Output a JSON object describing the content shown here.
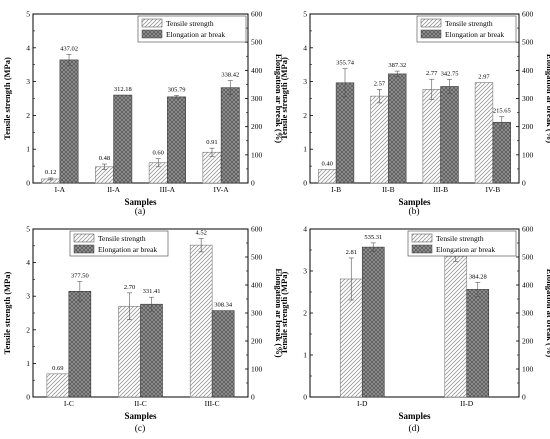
{
  "chart_data": [
    {
      "type": "bar",
      "panel": "(a)",
      "categories": [
        "I-A",
        "II-A",
        "III-A",
        "IV-A"
      ],
      "xlabel": "Samples",
      "ylabel_left": "Tensile strength (MPa)",
      "ylabel_right": "Elongation ar break (%)",
      "ylim_left": [
        0,
        5
      ],
      "ylim_right": [
        0,
        600
      ],
      "yticks_left": [
        "0",
        "1",
        "2",
        "3",
        "4",
        "5"
      ],
      "yticks_right": [
        "0",
        "100",
        "200",
        "300",
        "400",
        "500",
        "600"
      ],
      "legend": "top-right",
      "series": [
        {
          "name": "Tensile strength",
          "axis": "left",
          "values": [
            0.12,
            0.48,
            0.6,
            0.91
          ],
          "labels": [
            "0.12",
            "0.48",
            "0.60",
            "0.91"
          ],
          "errors": [
            0.03,
            0.08,
            0.12,
            0.12
          ]
        },
        {
          "name": "Elongation ar break",
          "axis": "right",
          "values": [
            437.02,
            312.18,
            305.79,
            338.42
          ],
          "labels": [
            "437.02",
            "312.18",
            "305.79",
            "338.42"
          ],
          "errors": [
            20,
            0,
            5,
            25
          ]
        }
      ]
    },
    {
      "type": "bar",
      "panel": "(b)",
      "categories": [
        "I-B",
        "II-B",
        "III-B",
        "IV-B"
      ],
      "xlabel": "Samples",
      "ylabel_left": "Tensile strength (MPa)",
      "ylabel_right": "Elongation ar break (%)",
      "ylim_left": [
        0,
        5
      ],
      "ylim_right": [
        0,
        600
      ],
      "yticks_left": [
        "0",
        "1",
        "2",
        "3",
        "4",
        "5"
      ],
      "yticks_right": [
        "0",
        "100",
        "200",
        "300",
        "400",
        "500",
        "600"
      ],
      "legend": "top-right",
      "series": [
        {
          "name": "Tensile strength",
          "axis": "left",
          "values": [
            0.4,
            2.57,
            2.77,
            2.97
          ],
          "labels": [
            "0.40",
            "2.57",
            "2.77",
            "2.97"
          ],
          "errors": [
            0,
            0.2,
            0.3,
            0
          ]
        },
        {
          "name": "Elongation ar break",
          "axis": "right",
          "values": [
            355.74,
            387.32,
            342.75,
            215.65
          ],
          "labels": [
            "355.74",
            "387.32",
            "342.75",
            "215.65"
          ],
          "errors": [
            50,
            10,
            25,
            20
          ]
        }
      ]
    },
    {
      "type": "bar",
      "panel": "(c)",
      "categories": [
        "I-C",
        "II-C",
        "III-C"
      ],
      "xlabel": "Samples",
      "ylabel_left": "Tensile strength (MPa)",
      "ylabel_right": "Elongation ar break (%)",
      "ylim_left": [
        0,
        5
      ],
      "ylim_right": [
        0,
        600
      ],
      "yticks_left": [
        "0",
        "1",
        "2",
        "3",
        "4",
        "5"
      ],
      "yticks_right": [
        "0",
        "100",
        "200",
        "300",
        "400",
        "500",
        "600"
      ],
      "legend": "top-left",
      "series": [
        {
          "name": "Tensile strength",
          "axis": "left",
          "values": [
            0.69,
            2.7,
            4.52
          ],
          "labels": [
            "0.69",
            "2.70",
            "4.52"
          ],
          "errors": [
            0,
            0.4,
            0.2
          ]
        },
        {
          "name": "Elongation ar break",
          "axis": "right",
          "values": [
            377.5,
            331.41,
            308.34
          ],
          "labels": [
            "377.50",
            "331.41",
            "308.34"
          ],
          "errors": [
            35,
            25,
            0
          ]
        }
      ]
    },
    {
      "type": "bar",
      "panel": "(d)",
      "categories": [
        "I-D",
        "II-D"
      ],
      "xlabel": "Samples",
      "ylabel_left": "Tensile strength (MPa)",
      "ylabel_right": "Elongation at break (%)",
      "ylim_left": [
        0,
        4
      ],
      "ylim_right": [
        0,
        600
      ],
      "yticks_left": [
        "0",
        "1",
        "2",
        "3",
        "4"
      ],
      "yticks_right": [
        "0",
        "100",
        "200",
        "300",
        "400",
        "500",
        "600"
      ],
      "legend": "top-right",
      "series": [
        {
          "name": "Tensile strength",
          "axis": "left",
          "values": [
            2.81,
            3.35
          ],
          "labels": [
            "2.81",
            "3.35"
          ],
          "errors": [
            0.5,
            0.12
          ]
        },
        {
          "name": "Elongation ar break",
          "axis": "right",
          "values": [
            535.31,
            384.28
          ],
          "labels": [
            "535.31",
            "384.28"
          ],
          "errors": [
            15,
            25
          ]
        }
      ]
    }
  ]
}
